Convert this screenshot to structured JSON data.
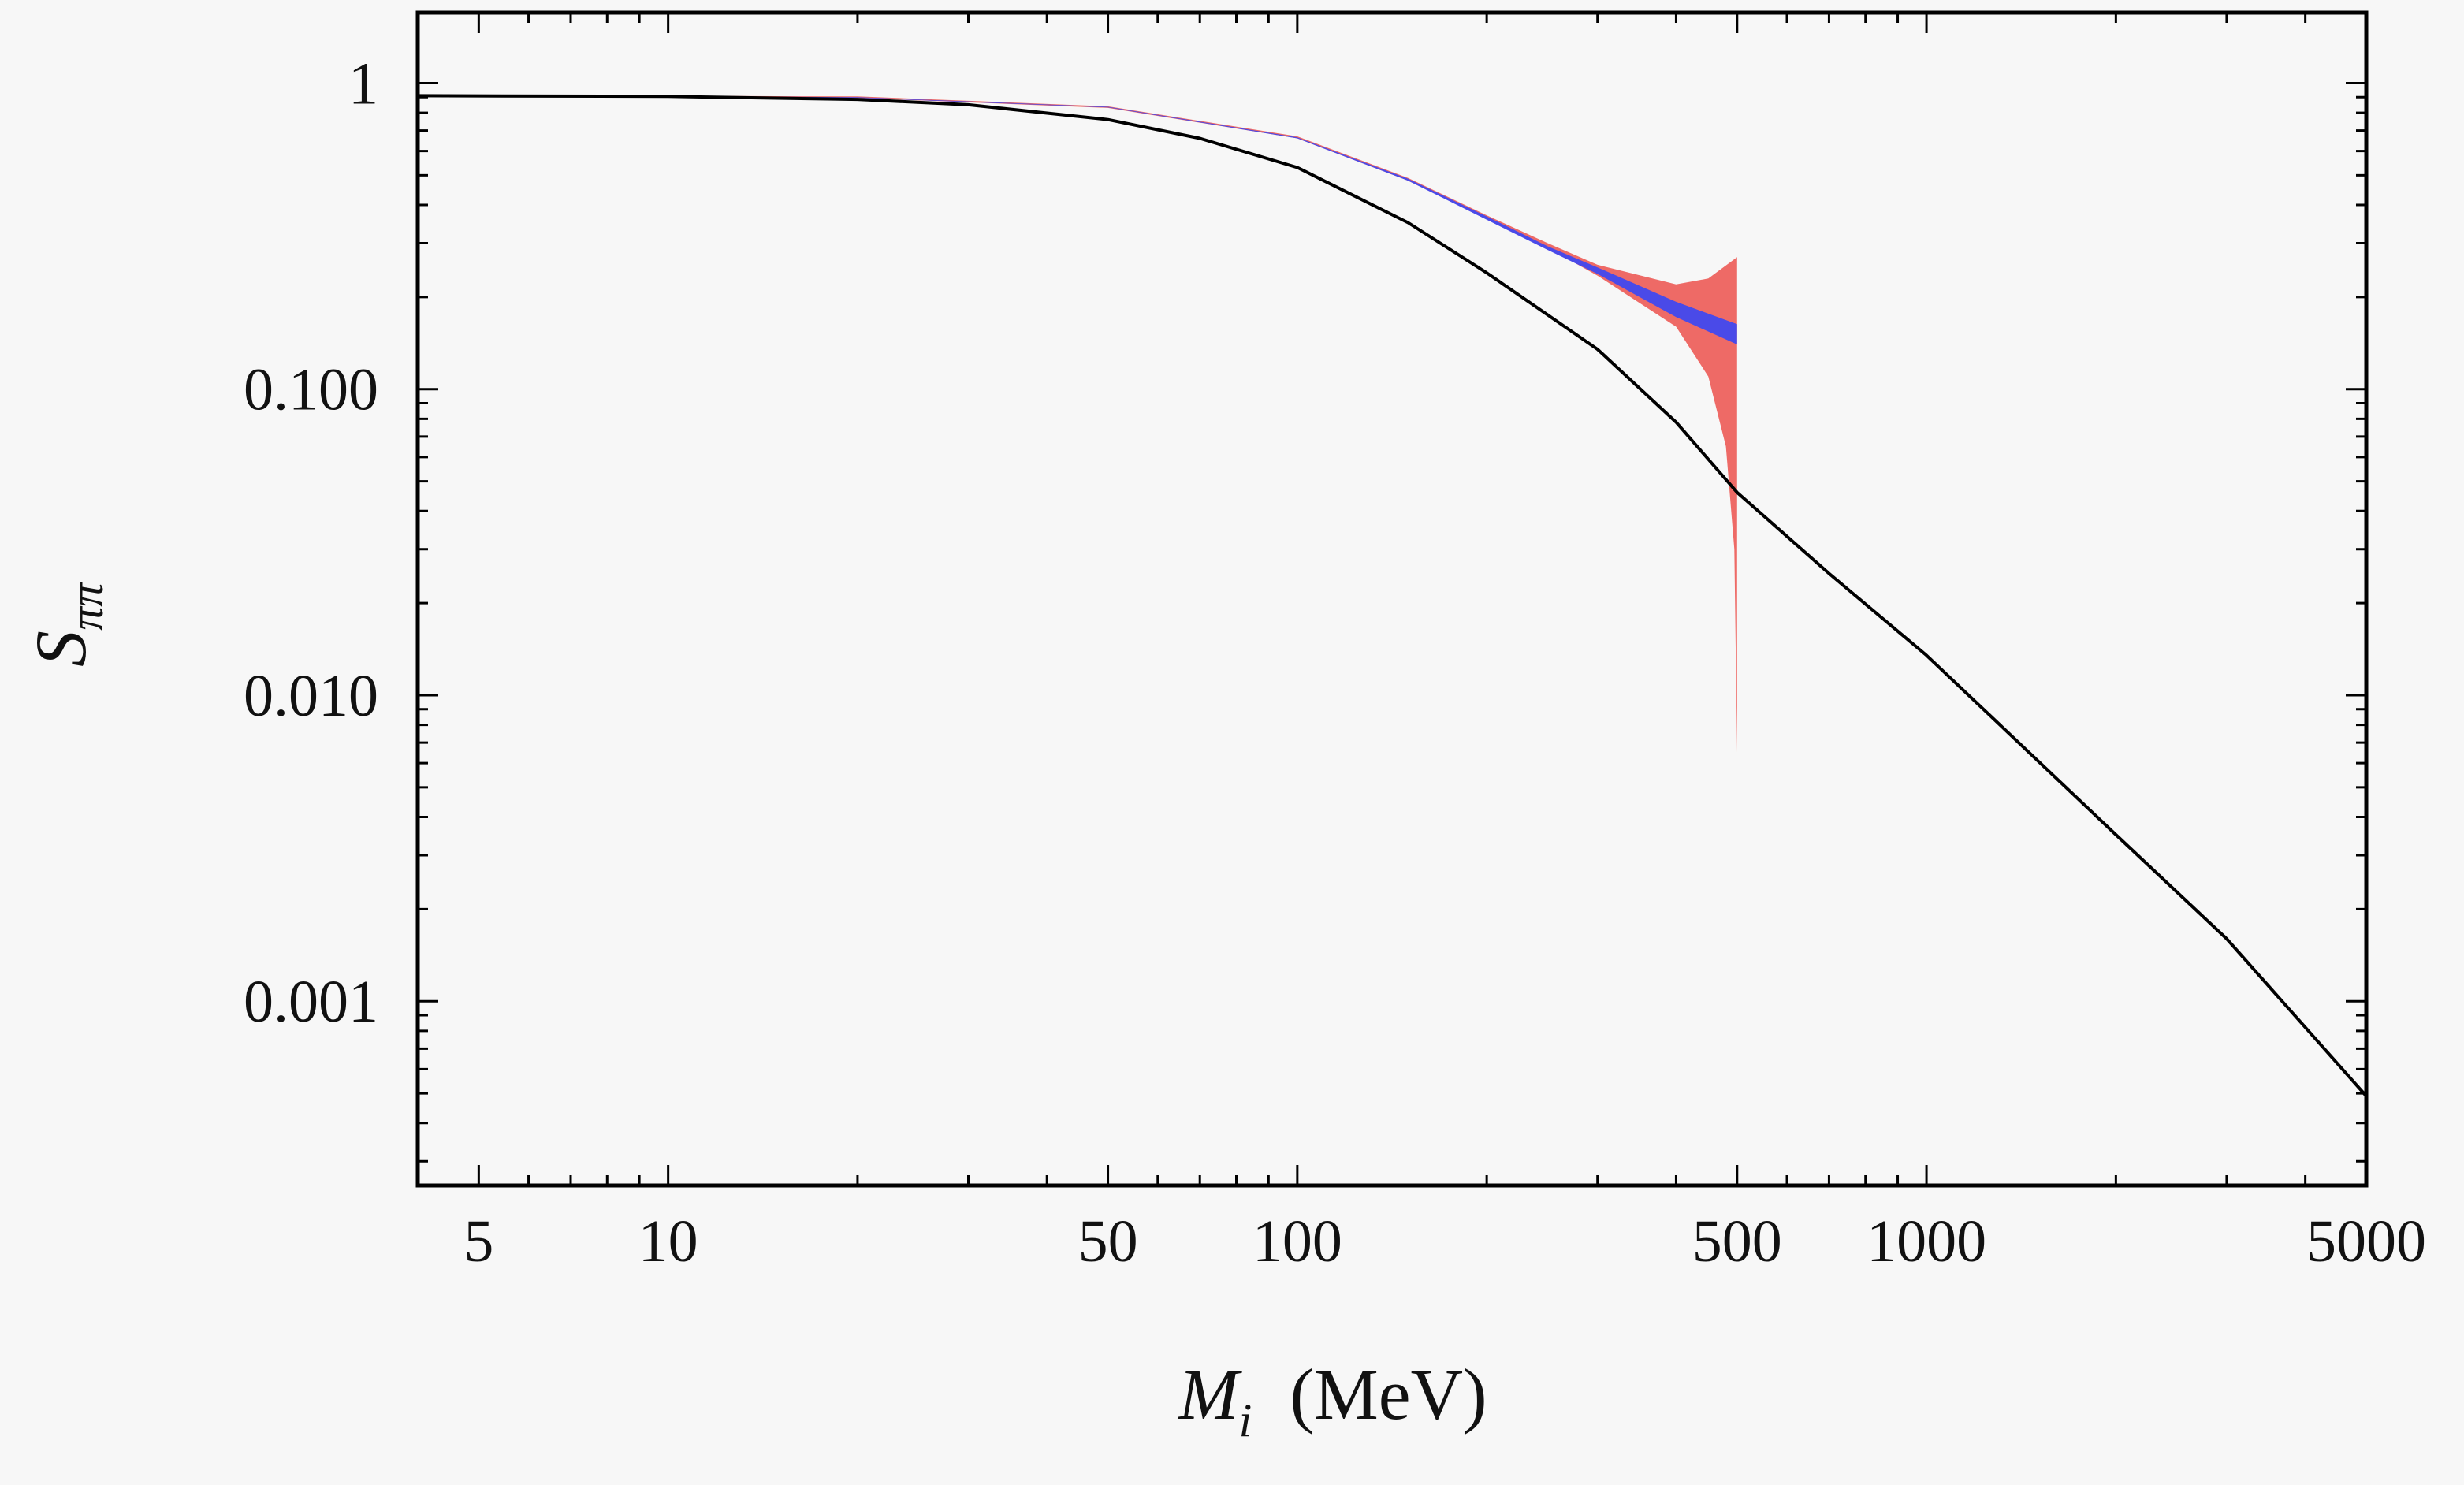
{
  "chart_data": {
    "type": "line",
    "xlabel_main": "M",
    "xlabel_sub": "i",
    "xlabel_unit": "(MeV)",
    "ylabel_main": "S",
    "ylabel_sub": "ππ",
    "x_scale": "log",
    "y_scale": "log",
    "xlim": [
      4,
      5000
    ],
    "ylim": [
      0.00025,
      1.7
    ],
    "x_ticks": [
      {
        "value": 5,
        "label": "5"
      },
      {
        "value": 10,
        "label": "10"
      },
      {
        "value": 50,
        "label": "50"
      },
      {
        "value": 100,
        "label": "100"
      },
      {
        "value": 500,
        "label": "500"
      },
      {
        "value": 1000,
        "label": "1000"
      },
      {
        "value": 5000,
        "label": "5000"
      }
    ],
    "y_ticks": [
      {
        "value": 1,
        "label": "1"
      },
      {
        "value": 0.1,
        "label": "0.100"
      },
      {
        "value": 0.01,
        "label": "0.010"
      },
      {
        "value": 0.001,
        "label": "0.001"
      }
    ],
    "grid": false,
    "legend": "none",
    "colors": {
      "black_line": "#000000",
      "red_band": "#ee6a66",
      "blue_band": "#4a4ae8"
    },
    "series": [
      {
        "kind": "line",
        "color": "#000000",
        "points": [
          [
            4,
            0.91
          ],
          [
            10,
            0.905
          ],
          [
            20,
            0.885
          ],
          [
            30,
            0.85
          ],
          [
            50,
            0.76
          ],
          [
            70,
            0.66
          ],
          [
            100,
            0.53
          ],
          [
            150,
            0.35
          ],
          [
            200,
            0.24
          ],
          [
            300,
            0.135
          ],
          [
            400,
            0.078
          ],
          [
            500,
            0.046
          ],
          [
            700,
            0.025
          ],
          [
            1000,
            0.0135
          ],
          [
            2000,
            0.0035
          ],
          [
            3000,
            0.0016
          ],
          [
            5000,
            0.00049
          ]
        ]
      },
      {
        "kind": "band",
        "color": "#ee6a66",
        "upper": [
          [
            4,
            0.915
          ],
          [
            20,
            0.905
          ],
          [
            50,
            0.84
          ],
          [
            100,
            0.67
          ],
          [
            150,
            0.49
          ],
          [
            200,
            0.37
          ],
          [
            250,
            0.3
          ],
          [
            300,
            0.255
          ],
          [
            400,
            0.22
          ],
          [
            450,
            0.23
          ],
          [
            500,
            0.27
          ]
        ],
        "lower": [
          [
            4,
            0.905
          ],
          [
            20,
            0.895
          ],
          [
            50,
            0.83
          ],
          [
            100,
            0.66
          ],
          [
            150,
            0.48
          ],
          [
            200,
            0.36
          ],
          [
            250,
            0.29
          ],
          [
            300,
            0.235
          ],
          [
            400,
            0.16
          ],
          [
            450,
            0.11
          ],
          [
            480,
            0.065
          ],
          [
            495,
            0.03
          ],
          [
            500,
            0.0065
          ]
        ]
      },
      {
        "kind": "band",
        "color": "#4a4ae8",
        "upper": [
          [
            4,
            0.912
          ],
          [
            20,
            0.9
          ],
          [
            50,
            0.837
          ],
          [
            100,
            0.665
          ],
          [
            150,
            0.487
          ],
          [
            200,
            0.367
          ],
          [
            250,
            0.293
          ],
          [
            300,
            0.25
          ],
          [
            400,
            0.193
          ],
          [
            500,
            0.163
          ]
        ],
        "lower": [
          [
            4,
            0.908
          ],
          [
            20,
            0.896
          ],
          [
            50,
            0.833
          ],
          [
            100,
            0.66
          ],
          [
            150,
            0.48
          ],
          [
            200,
            0.358
          ],
          [
            250,
            0.285
          ],
          [
            300,
            0.238
          ],
          [
            400,
            0.172
          ],
          [
            500,
            0.14
          ]
        ]
      }
    ]
  }
}
